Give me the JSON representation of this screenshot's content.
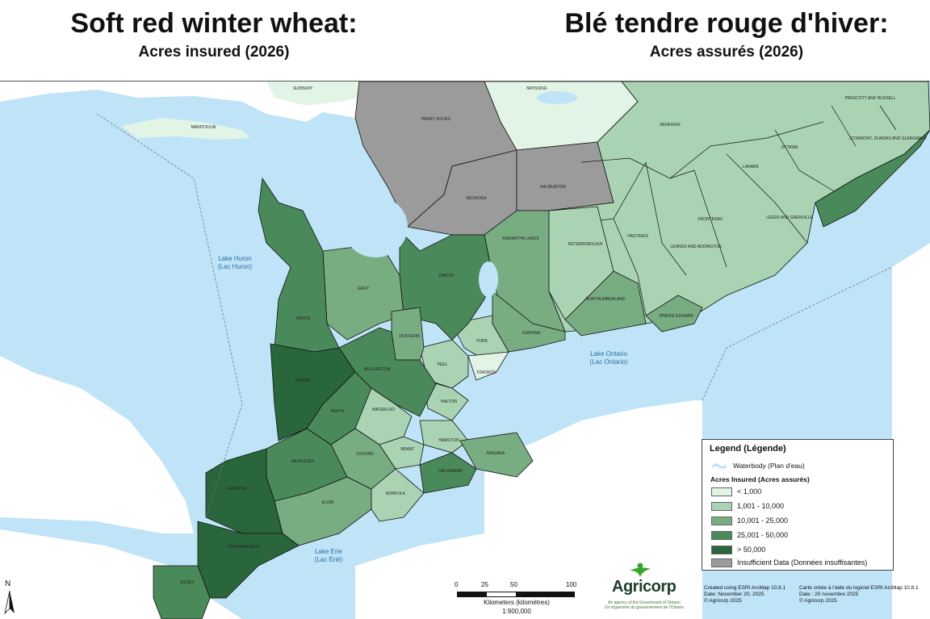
{
  "header": {
    "title_en": "Soft red winter wheat:",
    "subtitle_en": "Acres insured (2026)",
    "title_fr": "Blé tendre rouge d'hiver:",
    "subtitle_fr": "Acres assurés (2026)"
  },
  "colors": {
    "water": "#bfe3f7",
    "class1": "#e2f4e6",
    "class2": "#a9d3b2",
    "class3": "#78ad82",
    "class4": "#4a8a5a",
    "class5": "#2a663b",
    "insufficient": "#9b9b9b",
    "outside": "#ffffff"
  },
  "water_labels": {
    "lake_huron": "Lake Huron",
    "lake_huron_fr": "(Lac Huron)",
    "lake_ontario": "Lake Ontario",
    "lake_ontario_fr": "(Lac Ontario)",
    "lake_erie": "Lake Erie",
    "lake_erie_fr": "(Lac Érié)"
  },
  "counties": {
    "sudbury": "SUDBURY",
    "nipissing": "NIPISSING",
    "manitoulin": "MANITOULIN",
    "parry_sound": "PARRY SOUND",
    "muskoka": "MUSKOKA",
    "haliburton": "HALIBURTON",
    "renfrew": "RENFREW",
    "prescott_russell": "PRESCOTT AND RUSSELL",
    "stormont": "STORMONT, DUNDAS AND GLENGARRY",
    "ottawa": "OTTAWA",
    "lanark": "LANARK",
    "leeds_grenville": "LEEDS AND GRENVILLE",
    "frontenac": "FRONTENAC",
    "lennox_addington": "LENNOX AND ADDINGTON",
    "hastings": "HASTINGS",
    "peterborough": "PETERBOROUGH",
    "kawartha": "KAWARTHA LAKES",
    "northumberland": "NORTHUMBERLAND",
    "prince_edward": "PRINCE EDWARD",
    "durham": "DURHAM",
    "york": "YORK",
    "toronto": "TORONTO",
    "peel": "PEEL",
    "halton": "HALTON",
    "hamilton": "HAMILTON",
    "niagara": "NIAGARA",
    "simcoe": "SIMCOE",
    "grey": "GREY",
    "bruce": "BRUCE",
    "dufferin": "DUFFERIN",
    "wellington": "WELLINGTON",
    "huron": "HURON",
    "perth": "PERTH",
    "waterloo": "WATERLOO",
    "brant": "BRANT",
    "haldimand": "HALDIMAND",
    "oxford": "OXFORD",
    "middlesex": "MIDDLESEX",
    "elgin": "ELGIN",
    "norfolk": "NORFOLK",
    "lambton": "LAMBTON",
    "chatham_kent": "CHATHAM-KENT",
    "essex": "ESSEX"
  },
  "legend": {
    "title": "Legend (Légende)",
    "waterbody": "Waterbody (Plan d'eau)",
    "acres_title": "Acres Insured (Acres assurés)",
    "classes": [
      "< 1,000",
      "1,001 - 10,000",
      "10,001 - 25,000",
      "25,001 - 50,000",
      "> 50,000"
    ],
    "insufficient": "Insufficient Data (Données insuffisantes)"
  },
  "north_label": "N",
  "scale": {
    "ticks": [
      "0",
      "25",
      "50",
      "100"
    ],
    "caption": "Kilometers (kilomètres)",
    "ratio": "1:900,000"
  },
  "logo": {
    "name": "Agricorp",
    "tagline_en": "An agency of the Government of Ontario",
    "tagline_fr": "Un organisme du gouvernement de l'Ontario"
  },
  "credits": {
    "en_line1": "Created using ESRI ArcMap 10.8.1",
    "en_line2": "Date: November 20, 2025",
    "en_line3": "© Agricorp 2025",
    "fr_line1": "Carte créée à l'aide du logiciel ESRI ArcMap 10.8.1",
    "fr_line2": "Date : 20 novembre 2025",
    "fr_line3": "© Agricorp 2025"
  }
}
